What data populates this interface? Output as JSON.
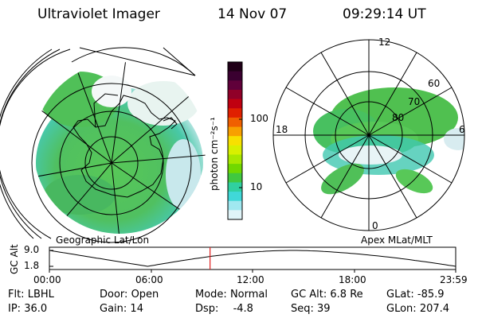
{
  "header": {
    "instrument": "Ultraviolet Imager",
    "date": "14 Nov 07",
    "time": "09:29:14 UT"
  },
  "colorbar": {
    "unit_label": "photon cm⁻²s⁻¹",
    "ticks": [
      "100",
      "10"
    ],
    "colors": [
      "#200018",
      "#3a0030",
      "#60003a",
      "#900028",
      "#c00010",
      "#e02000",
      "#f06000",
      "#f8a000",
      "#f8e000",
      "#d8f000",
      "#a8e800",
      "#70d800",
      "#40c840",
      "#30d0a0",
      "#40d8d8",
      "#a0e8f0",
      "#e0f4f8"
    ]
  },
  "left_map": {
    "caption": "Geographic Lat/Lon"
  },
  "right_map": {
    "caption": "Apex MLat/MLT",
    "mlt_labels": [
      "12",
      "18",
      "6",
      "0"
    ],
    "lat_labels": [
      "60",
      "70",
      "80"
    ]
  },
  "timeline": {
    "axis_label": "GC Alt",
    "y_ticks": [
      "9.0",
      "1.8"
    ],
    "x_ticks": [
      "00:00",
      "06:00",
      "12:00",
      "18:00",
      "23:59"
    ],
    "current_marker_hours": 9.49
  },
  "footer": {
    "row1": [
      {
        "label": "Flt:",
        "value": "LBHL"
      },
      {
        "label": "Door:",
        "value": "Open"
      },
      {
        "label": "Mode:",
        "value": "Normal"
      },
      {
        "label": "GC Alt:",
        "value": "6.8 Re"
      },
      {
        "label": "GLat:",
        "value": "-85.9"
      }
    ],
    "row2": [
      {
        "label": "IP:",
        "value": "36.0"
      },
      {
        "label": "Gain:",
        "value": "14"
      },
      {
        "label": "Dsp:",
        "value": "-4.8"
      },
      {
        "label": "Seq:",
        "value": "39"
      },
      {
        "label": "GLon:",
        "value": "207.4"
      }
    ]
  }
}
